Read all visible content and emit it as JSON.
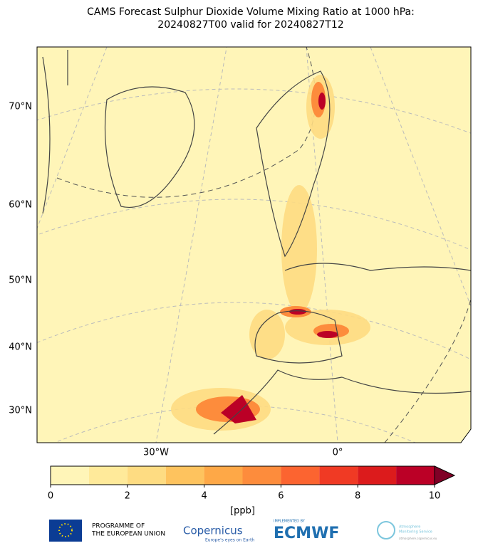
{
  "title_lines": [
    "CAMS Forecast Sulphur Dioxide Volume Mixing Ratio at 1000 hPa:",
    "20240827T00 valid for 20240827T12"
  ],
  "map": {
    "lat_labels": [
      "70°N",
      "60°N",
      "50°N",
      "40°N",
      "30°N"
    ],
    "lon_labels": [
      "30°W",
      "0°"
    ]
  },
  "colorbar": {
    "levels": [
      0,
      1,
      2,
      3,
      4,
      5,
      6,
      7,
      8,
      9,
      10
    ],
    "colors": [
      "#fff5b8",
      "#ffea9a",
      "#fedc82",
      "#fec35e",
      "#fea847",
      "#fd8c3c",
      "#fc6430",
      "#f03a24",
      "#dc1b1c",
      "#bb0026"
    ],
    "extend_color": "#800026",
    "ticks": [
      0,
      2,
      4,
      6,
      8,
      10
    ],
    "unit": "[ppb]"
  },
  "logos": {
    "eu": [
      "PROGRAMME OF",
      "THE EUROPEAN UNION"
    ],
    "copernicus": "Copernicus",
    "copernicus_tagline": "Europe's eyes on Earth",
    "ecmwf_pre": "IMPLEMENTED BY",
    "ecmwf": "ECMWF",
    "cams": [
      "Atmosphere",
      "Monitoring Service"
    ],
    "cams_url": "atmosphere.copernicus.eu"
  }
}
